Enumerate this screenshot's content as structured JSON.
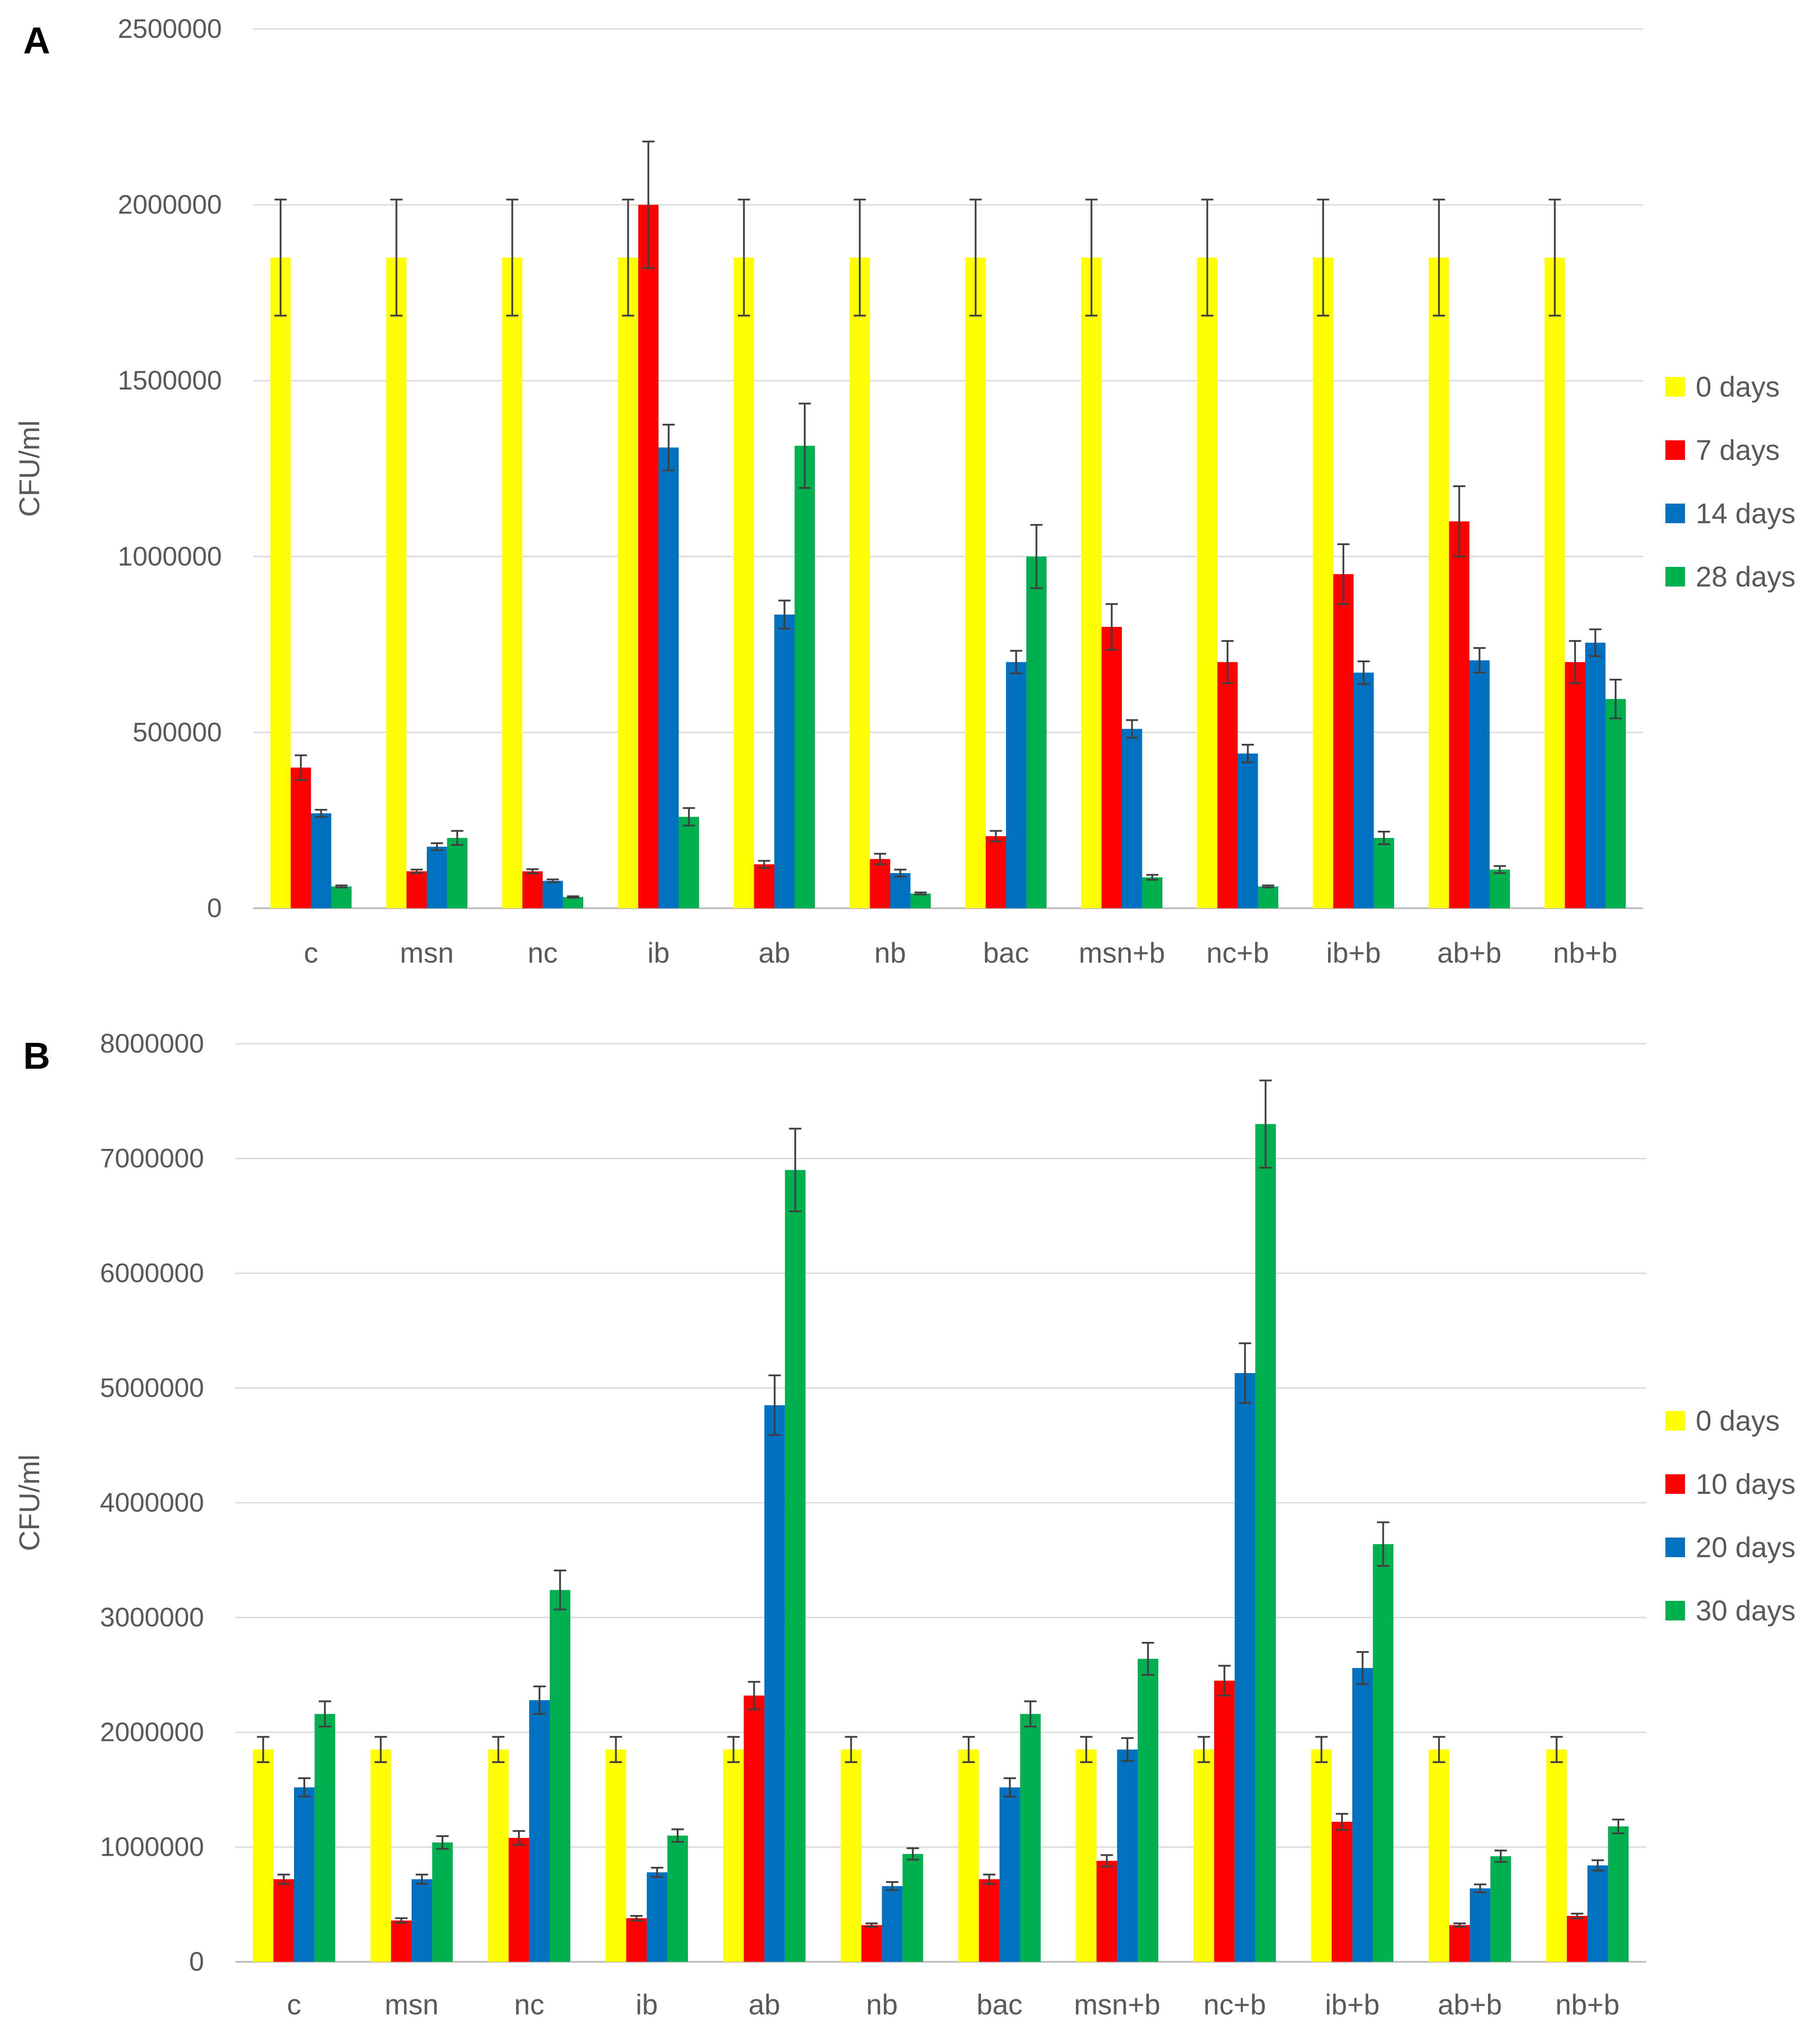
{
  "figure_labels": [
    "A",
    "B"
  ],
  "colors": {
    "yellow": "#ffff00",
    "red": "#ff0000",
    "blue": "#0070c0",
    "green": "#00b050",
    "gridline": "#d9d9d9",
    "error_bar": "#404040",
    "text": "#595959"
  },
  "chart_data": [
    {
      "panel": "A",
      "type": "bar",
      "title": "",
      "xlabel": "",
      "ylabel": "CFU/ml",
      "ylim": [
        0,
        2500000
      ],
      "yticks": [
        "0",
        "500000",
        "1000000",
        "1500000",
        "2000000",
        "2500000"
      ],
      "grid": true,
      "legend": "right",
      "categories": [
        "c",
        "msn",
        "nc",
        "ib",
        "ab",
        "nb",
        "bac",
        "msn+b",
        "nc+b",
        "ib+b",
        "ab+b",
        "nb+b"
      ],
      "series": [
        {
          "name": "0 days",
          "color": "#ffff00",
          "values": [
            1850000,
            1850000,
            1850000,
            1850000,
            1850000,
            1850000,
            1850000,
            1850000,
            1850000,
            1850000,
            1850000,
            1850000
          ],
          "errors": [
            165000,
            165000,
            165000,
            165000,
            165000,
            165000,
            165000,
            165000,
            165000,
            165000,
            165000,
            165000
          ]
        },
        {
          "name": "7 days",
          "color": "#ff0000",
          "values": [
            400000,
            105000,
            105000,
            2000000,
            125000,
            140000,
            205000,
            800000,
            700000,
            950000,
            1100000,
            700000
          ],
          "errors": [
            35000,
            5000,
            6000,
            180000,
            10000,
            15000,
            15000,
            65000,
            60000,
            85000,
            100000,
            60000
          ]
        },
        {
          "name": "14 days",
          "color": "#0070c0",
          "values": [
            270000,
            175000,
            78000,
            1310000,
            835000,
            100000,
            700000,
            510000,
            440000,
            670000,
            705000,
            755000
          ],
          "errors": [
            10000,
            10000,
            4000,
            65000,
            40000,
            10000,
            32000,
            25000,
            25000,
            32000,
            35000,
            38000
          ]
        },
        {
          "name": "28 days",
          "color": "#00b050",
          "values": [
            62000,
            200000,
            32000,
            260000,
            1315000,
            42000,
            1000000,
            88000,
            62000,
            200000,
            110000,
            595000
          ],
          "errors": [
            3000,
            20000,
            2000,
            25000,
            120000,
            3000,
            90000,
            7000,
            3000,
            18000,
            10000,
            55000
          ]
        }
      ]
    },
    {
      "panel": "B",
      "type": "bar",
      "title": "",
      "xlabel": "",
      "ylabel": "CFU/ml",
      "ylim": [
        0,
        8000000
      ],
      "yticks": [
        "0",
        "1000000",
        "2000000",
        "3000000",
        "4000000",
        "5000000",
        "6000000",
        "7000000",
        "8000000"
      ],
      "grid": true,
      "legend": "right",
      "categories": [
        "c",
        "msn",
        "nc",
        "ib",
        "ab",
        "nb",
        "bac",
        "msn+b",
        "nc+b",
        "ib+b",
        "ab+b",
        "nb+b"
      ],
      "series": [
        {
          "name": "0 days",
          "color": "#ffff00",
          "values": [
            1850000,
            1850000,
            1850000,
            1850000,
            1850000,
            1850000,
            1850000,
            1850000,
            1850000,
            1850000,
            1850000,
            1850000
          ],
          "errors": [
            110000,
            110000,
            110000,
            110000,
            110000,
            110000,
            110000,
            110000,
            110000,
            110000,
            110000,
            110000
          ]
        },
        {
          "name": "10 days",
          "color": "#ff0000",
          "values": [
            720000,
            360000,
            1080000,
            380000,
            2320000,
            320000,
            720000,
            880000,
            2450000,
            1220000,
            320000,
            400000
          ],
          "errors": [
            40000,
            20000,
            60000,
            20000,
            120000,
            15000,
            40000,
            50000,
            130000,
            70000,
            15000,
            20000
          ]
        },
        {
          "name": "20 days",
          "color": "#0070c0",
          "values": [
            1520000,
            720000,
            2280000,
            780000,
            4850000,
            660000,
            1520000,
            1850000,
            5130000,
            2560000,
            640000,
            840000
          ],
          "errors": [
            80000,
            40000,
            120000,
            40000,
            260000,
            35000,
            80000,
            100000,
            260000,
            140000,
            35000,
            45000
          ]
        },
        {
          "name": "30 days",
          "color": "#00b050",
          "values": [
            2160000,
            1040000,
            3240000,
            1100000,
            6900000,
            940000,
            2160000,
            2640000,
            7300000,
            3640000,
            920000,
            1180000
          ],
          "errors": [
            110000,
            55000,
            170000,
            55000,
            360000,
            50000,
            110000,
            140000,
            380000,
            190000,
            50000,
            60000
          ]
        }
      ]
    }
  ]
}
